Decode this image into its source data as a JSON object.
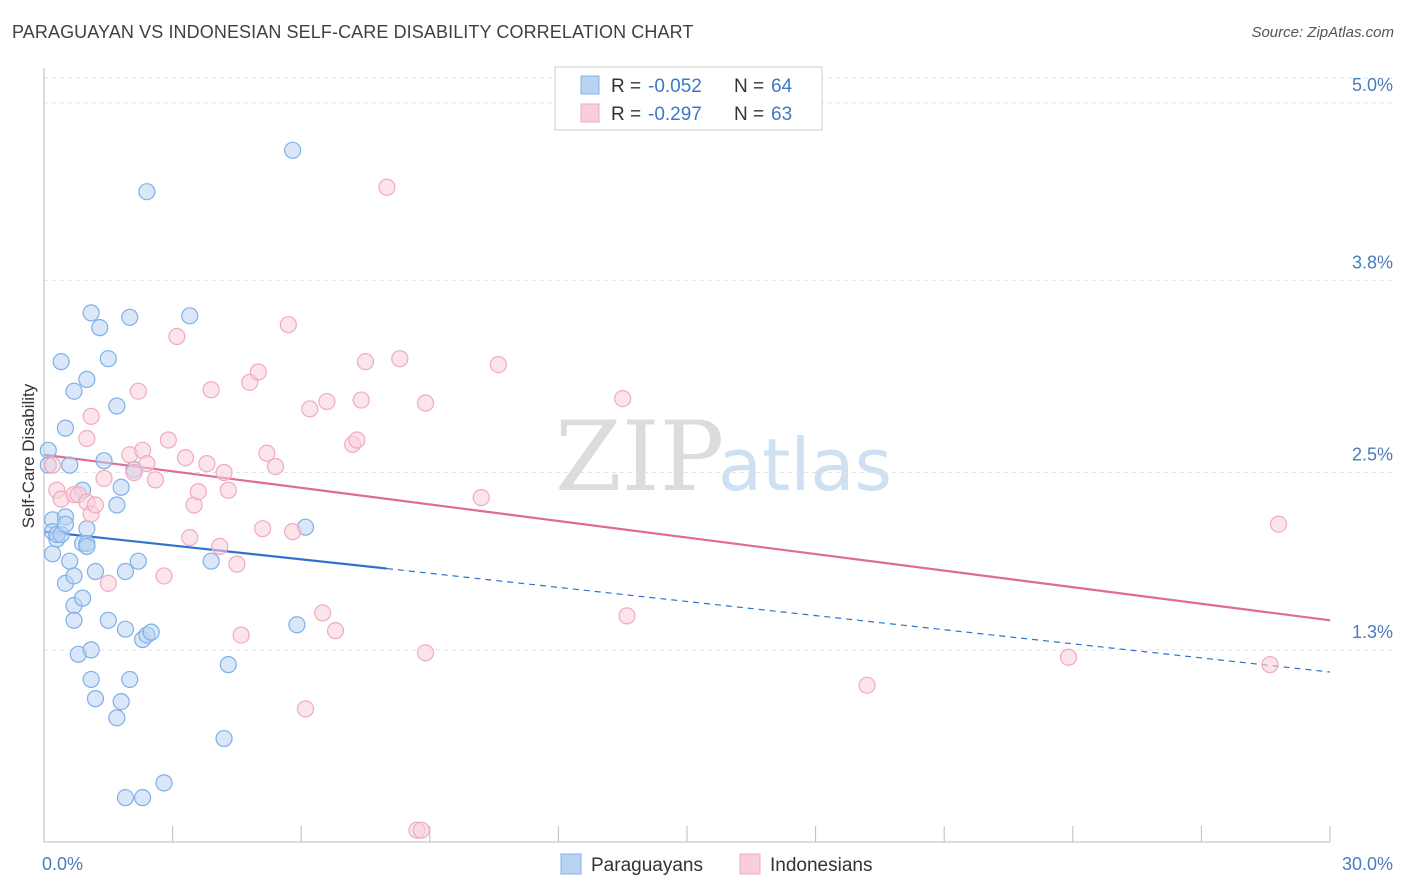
{
  "header": {
    "title": "PARAGUAYAN VS INDONESIAN SELF-CARE DISABILITY CORRELATION CHART",
    "source": "Source: ZipAtlas.com"
  },
  "watermark": {
    "zip": "ZIP",
    "atlas": "atlas"
  },
  "legend": {
    "rows": [
      {
        "r_label": "R = ",
        "r_value": "-0.052",
        "n_label": "N = ",
        "n_value": "64"
      },
      {
        "r_label": "R = ",
        "r_value": "-0.297",
        "n_label": "N = ",
        "n_value": "63"
      }
    ]
  },
  "chart_data": {
    "type": "scatter",
    "title": "PARAGUAYAN VS INDONESIAN SELF-CARE DISABILITY CORRELATION CHART",
    "ylabel": "Self-Care Disability",
    "xlabel": "",
    "xlim": [
      0,
      30
    ],
    "ylim": [
      0.0,
      5.2
    ],
    "x_tick_labels": [
      "0.0%",
      "30.0%"
    ],
    "y_ticks": [
      {
        "value": 5.0,
        "label": "5.0%"
      },
      {
        "value": 3.8,
        "label": "3.8%"
      },
      {
        "value": 2.5,
        "label": "2.5%"
      },
      {
        "value": 1.3,
        "label": "1.3%"
      }
    ],
    "grid": true,
    "series": [
      {
        "name": "Paraguayans",
        "color": "#7fb0e8",
        "fill": "#b9d3f2",
        "trend": {
          "x0": 0,
          "y0": 2.1,
          "x1": 8,
          "y1": 1.85,
          "dash_x1": 30,
          "dash_y1": 1.15,
          "color": "#2f72cc"
        },
        "points": [
          [
            0.1,
            2.65
          ],
          [
            0.1,
            2.55
          ],
          [
            0.2,
            2.18
          ],
          [
            0.2,
            1.95
          ],
          [
            0.2,
            2.1
          ],
          [
            0.3,
            2.05
          ],
          [
            0.3,
            2.08
          ],
          [
            0.4,
            2.08
          ],
          [
            0.4,
            3.25
          ],
          [
            0.5,
            2.2
          ],
          [
            0.5,
            2.15
          ],
          [
            0.5,
            2.8
          ],
          [
            0.5,
            1.75
          ],
          [
            0.6,
            2.55
          ],
          [
            0.6,
            1.9
          ],
          [
            0.7,
            3.05
          ],
          [
            0.7,
            1.8
          ],
          [
            0.7,
            1.6
          ],
          [
            0.7,
            1.5
          ],
          [
            0.8,
            1.27
          ],
          [
            0.9,
            2.02
          ],
          [
            0.9,
            1.65
          ],
          [
            0.9,
            2.38
          ],
          [
            1.0,
            3.13
          ],
          [
            1.0,
            2.12
          ],
          [
            1.0,
            2.02
          ],
          [
            1.0,
            2.0
          ],
          [
            1.1,
            3.58
          ],
          [
            1.1,
            1.3
          ],
          [
            1.1,
            1.1
          ],
          [
            1.2,
            1.83
          ],
          [
            1.2,
            0.97
          ],
          [
            1.3,
            3.48
          ],
          [
            1.4,
            2.58
          ],
          [
            1.5,
            3.27
          ],
          [
            1.5,
            1.5
          ],
          [
            1.7,
            2.95
          ],
          [
            1.7,
            2.28
          ],
          [
            1.7,
            0.84
          ],
          [
            1.8,
            2.4
          ],
          [
            1.8,
            0.95
          ],
          [
            1.9,
            1.83
          ],
          [
            1.9,
            1.44
          ],
          [
            1.9,
            0.3
          ],
          [
            2.0,
            3.55
          ],
          [
            2.0,
            1.1
          ],
          [
            2.1,
            2.52
          ],
          [
            2.2,
            1.9
          ],
          [
            2.3,
            1.37
          ],
          [
            2.3,
            0.3
          ],
          [
            2.4,
            1.4
          ],
          [
            2.4,
            4.4
          ],
          [
            2.5,
            1.42
          ],
          [
            2.8,
            0.4
          ],
          [
            3.4,
            3.56
          ],
          [
            3.9,
            1.9
          ],
          [
            4.2,
            0.7
          ],
          [
            4.3,
            1.2
          ],
          [
            5.8,
            4.68
          ],
          [
            5.9,
            1.47
          ],
          [
            6.1,
            2.13
          ]
        ]
      },
      {
        "name": "Indonesians",
        "color": "#f2a9be",
        "fill": "#f7cfdb",
        "trend": {
          "x0": 0,
          "y0": 2.62,
          "x1": 30,
          "y1": 1.5,
          "color": "#e06b96"
        },
        "points": [
          [
            0.2,
            2.55
          ],
          [
            0.3,
            2.38
          ],
          [
            0.4,
            2.32
          ],
          [
            0.7,
            2.35
          ],
          [
            0.8,
            2.35
          ],
          [
            1.0,
            2.73
          ],
          [
            1.0,
            2.3
          ],
          [
            1.1,
            2.88
          ],
          [
            1.1,
            2.22
          ],
          [
            1.2,
            2.28
          ],
          [
            1.4,
            2.46
          ],
          [
            1.5,
            1.75
          ],
          [
            2.0,
            2.62
          ],
          [
            2.1,
            2.5
          ],
          [
            2.2,
            3.05
          ],
          [
            2.3,
            2.65
          ],
          [
            2.4,
            2.56
          ],
          [
            2.6,
            2.45
          ],
          [
            2.8,
            1.8
          ],
          [
            2.9,
            2.72
          ],
          [
            3.1,
            3.42
          ],
          [
            3.3,
            2.6
          ],
          [
            3.4,
            2.06
          ],
          [
            3.5,
            2.28
          ],
          [
            3.6,
            2.37
          ],
          [
            3.8,
            2.56
          ],
          [
            3.9,
            3.06
          ],
          [
            4.1,
            2.0
          ],
          [
            4.2,
            2.5
          ],
          [
            4.3,
            2.38
          ],
          [
            4.5,
            1.88
          ],
          [
            4.6,
            1.4
          ],
          [
            4.8,
            3.11
          ],
          [
            5.0,
            3.18
          ],
          [
            5.1,
            2.12
          ],
          [
            5.2,
            2.63
          ],
          [
            5.4,
            2.54
          ],
          [
            5.7,
            3.5
          ],
          [
            5.8,
            2.1
          ],
          [
            6.1,
            0.9
          ],
          [
            6.2,
            2.93
          ],
          [
            6.5,
            1.55
          ],
          [
            6.6,
            2.98
          ],
          [
            6.8,
            1.43
          ],
          [
            7.2,
            2.69
          ],
          [
            7.3,
            2.72
          ],
          [
            7.4,
            2.99
          ],
          [
            7.5,
            3.25
          ],
          [
            8.0,
            4.43
          ],
          [
            8.3,
            3.27
          ],
          [
            8.7,
            0.08
          ],
          [
            8.8,
            0.08
          ],
          [
            8.9,
            2.97
          ],
          [
            8.9,
            1.28
          ],
          [
            10.2,
            2.33
          ],
          [
            10.6,
            3.23
          ],
          [
            13.5,
            3.0
          ],
          [
            13.6,
            1.53
          ],
          [
            19.2,
            1.06
          ],
          [
            23.9,
            1.25
          ],
          [
            28.6,
            1.2
          ],
          [
            28.8,
            2.15
          ]
        ]
      }
    ]
  }
}
